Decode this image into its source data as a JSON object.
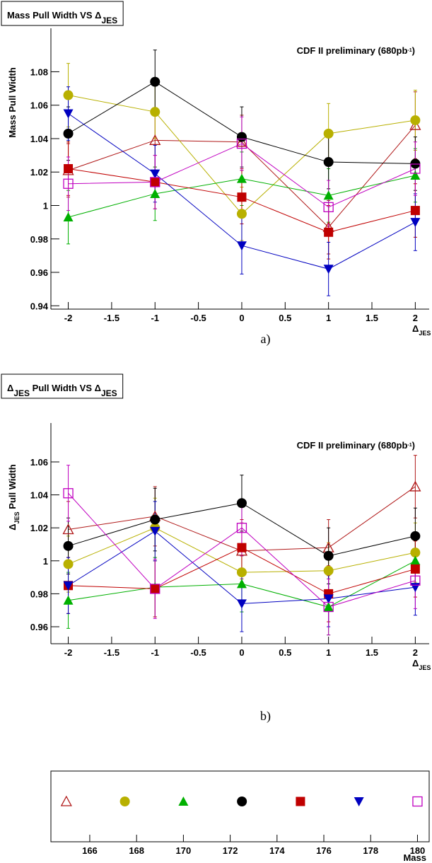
{
  "chart_data": [
    {
      "type": "line",
      "title": [
        "Mass Pull Width VS Δ",
        "JES"
      ],
      "ylabel": [
        "Mass Pull Width"
      ],
      "xlabel": [
        "Δ",
        "JES"
      ],
      "annotation": [
        "CDF II preliminary (680pb",
        "-1",
        ")"
      ],
      "caption": "a)",
      "x": [
        -2,
        -1,
        0,
        1,
        2
      ],
      "xlim": [
        -2.2,
        2.16
      ],
      "xticks": [
        -2,
        -1.5,
        -1,
        -0.5,
        0,
        0.5,
        1,
        1.5,
        2
      ],
      "ylim": [
        0.938,
        1.106
      ],
      "yticks": [
        0.94,
        0.96,
        0.98,
        1,
        1.02,
        1.04,
        1.06,
        1.08
      ],
      "series": [
        {
          "color": "#b01818",
          "marker": "triangle-open",
          "values": [
            1.021,
            1.039,
            1.038,
            0.987,
            1.048
          ],
          "errors": [
            0.016,
            0.016,
            0.016,
            0.016,
            0.02
          ]
        },
        {
          "color": "#b8b000",
          "marker": "circle",
          "values": [
            1.066,
            1.056,
            0.995,
            1.043,
            1.051
          ],
          "errors": [
            0.019,
            0.016,
            0.016,
            0.018,
            0.018
          ]
        },
        {
          "color": "#00b000",
          "marker": "triangle",
          "values": [
            0.993,
            1.007,
            1.016,
            1.006,
            1.018
          ],
          "errors": [
            0.016,
            0.016,
            0.016,
            0.016,
            0.016
          ]
        },
        {
          "color": "#000000",
          "marker": "circle",
          "values": [
            1.043,
            1.074,
            1.041,
            1.026,
            1.025
          ],
          "errors": [
            0.016,
            0.019,
            0.018,
            0.016,
            0.016
          ]
        },
        {
          "color": "#c00000",
          "marker": "square",
          "values": [
            1.022,
            1.014,
            1.005,
            0.984,
            0.997
          ],
          "errors": [
            0.016,
            0.016,
            0.016,
            0.016,
            0.016
          ]
        },
        {
          "color": "#0000c0",
          "marker": "triangle-down",
          "values": [
            1.055,
            1.019,
            0.976,
            0.962,
            0.99
          ],
          "errors": [
            0.016,
            0.017,
            0.017,
            0.016,
            0.017
          ]
        },
        {
          "color": "#c000c0",
          "marker": "square-open",
          "values": [
            1.013,
            1.014,
            1.037,
            0.999,
            1.022
          ],
          "errors": [
            0.016,
            0.016,
            0.016,
            0.016,
            0.016
          ]
        }
      ]
    },
    {
      "type": "line",
      "title": [
        "Δ",
        "JES",
        " Pull Width VS Δ",
        "JES"
      ],
      "ylabel": [
        "Δ",
        "JES",
        " Pull Width"
      ],
      "xlabel": [
        "Δ",
        "JES"
      ],
      "annotation": [
        "CDF II preliminary (680pb",
        "-1",
        ")"
      ],
      "caption": "b)",
      "x": [
        -2,
        -1,
        0,
        1,
        2
      ],
      "xlim": [
        -2.2,
        2.16
      ],
      "xticks": [
        -2,
        -1.5,
        -1,
        -0.5,
        0,
        0.5,
        1,
        1.5,
        2
      ],
      "ylim": [
        0.9497,
        1.0836
      ],
      "yticks": [
        0.96,
        0.98,
        1,
        1.02,
        1.04,
        1.06
      ],
      "series": [
        {
          "color": "#b01818",
          "marker": "triangle-open",
          "values": [
            1.019,
            1.027,
            1.006,
            1.008,
            1.045
          ],
          "errors": [
            0.017,
            0.018,
            0.017,
            0.017,
            0.019
          ]
        },
        {
          "color": "#b8b000",
          "marker": "circle",
          "values": [
            0.998,
            1.02,
            0.993,
            0.994,
            1.005
          ],
          "errors": [
            0.017,
            0.018,
            0.017,
            0.017,
            0.018
          ]
        },
        {
          "color": "#00b000",
          "marker": "triangle",
          "values": [
            0.976,
            0.984,
            0.986,
            0.972,
            1.0
          ],
          "errors": [
            0.017,
            0.018,
            0.017,
            0.017,
            0.017
          ]
        },
        {
          "color": "#000000",
          "marker": "circle",
          "values": [
            1.009,
            1.025,
            1.035,
            1.003,
            1.015
          ],
          "errors": [
            0.017,
            0.019,
            0.017,
            0.017,
            0.017
          ]
        },
        {
          "color": "#c00000",
          "marker": "square",
          "values": [
            0.985,
            0.983,
            1.008,
            0.98,
            0.995
          ],
          "errors": [
            0.017,
            0.017,
            0.017,
            0.017,
            0.017
          ]
        },
        {
          "color": "#0000c0",
          "marker": "triangle-down",
          "values": [
            0.985,
            1.018,
            0.974,
            0.977,
            0.984
          ],
          "errors": [
            0.017,
            0.018,
            0.017,
            0.017,
            0.017
          ]
        },
        {
          "color": "#c000c0",
          "marker": "square-open",
          "values": [
            1.041,
            0.983,
            1.02,
            0.972,
            0.988
          ],
          "errors": [
            0.017,
            0.018,
            0.017,
            0.017,
            0.017
          ]
        }
      ]
    },
    {
      "type": "scatter",
      "x": [
        165,
        167.5,
        170,
        172.5,
        175,
        177.5,
        180
      ],
      "markers": [
        "triangle-open",
        "circle",
        "triangle",
        "circle",
        "square",
        "triangle-down",
        "square-open"
      ],
      "colors": [
        "#b01818",
        "#b8b000",
        "#00b000",
        "#000000",
        "#c00000",
        "#0000c0",
        "#c000c0"
      ],
      "xlim": [
        164.34,
        180.5
      ],
      "xticks": [
        166,
        168,
        170,
        172,
        174,
        176,
        178,
        180
      ],
      "xlabel": [
        "Mass"
      ]
    }
  ]
}
